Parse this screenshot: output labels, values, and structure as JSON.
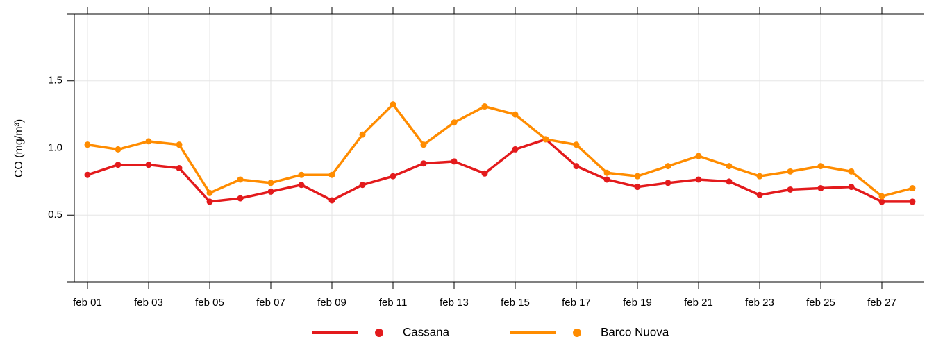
{
  "chart_data": {
    "type": "line",
    "y_label": "CO (mg/m³)",
    "categories": [
      "feb 01",
      null,
      "feb 03",
      null,
      "feb 05",
      null,
      "feb 07",
      null,
      "feb 09",
      null,
      "feb 11",
      null,
      "feb 13",
      null,
      "feb 15",
      null,
      "feb 17",
      null,
      "feb 19",
      null,
      "feb 21",
      null,
      "feb 23",
      null,
      "feb 25",
      null,
      "feb 27",
      null
    ],
    "series": [
      {
        "name": "Cassana",
        "color": "#e31a1c",
        "values": [
          0.8,
          0.875,
          0.875,
          0.85,
          0.6,
          0.625,
          0.675,
          0.725,
          0.61,
          0.725,
          0.79,
          0.885,
          0.9,
          0.81,
          0.99,
          1.065,
          0.865,
          0.765,
          0.71,
          0.74,
          0.765,
          0.75,
          0.65,
          0.69,
          0.7,
          0.71,
          0.6,
          0.6
        ]
      },
      {
        "name": "Barco Nuova",
        "color": "#ff8c00",
        "values": [
          1.025,
          0.99,
          1.05,
          1.025,
          0.665,
          0.765,
          0.74,
          0.8,
          0.8,
          1.1,
          1.325,
          1.025,
          1.19,
          1.31,
          1.25,
          1.065,
          1.025,
          0.815,
          0.79,
          0.865,
          0.94,
          0.865,
          0.79,
          0.825,
          0.865,
          0.825,
          0.64,
          0.7
        ]
      }
    ],
    "ylim": [
      0,
      2
    ],
    "yticks": [
      0.5,
      {
        "value": 1,
        "label": "1.0"
      },
      1.5
    ],
    "grid": true,
    "legend": "bottom"
  }
}
